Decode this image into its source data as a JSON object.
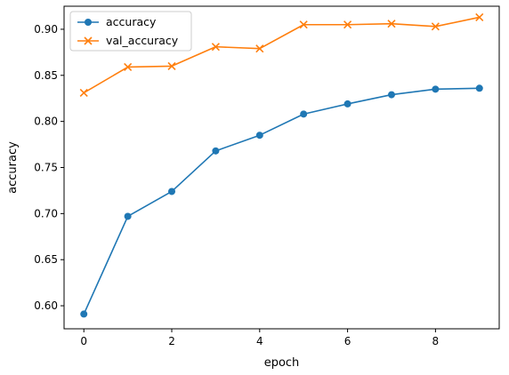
{
  "chart_data": {
    "type": "line",
    "title": "",
    "xlabel": "epoch",
    "ylabel": "accuracy",
    "x": [
      0,
      1,
      2,
      3,
      4,
      5,
      6,
      7,
      8,
      9
    ],
    "xlim": [
      -0.45,
      9.45
    ],
    "ylim": [
      0.575,
      0.925
    ],
    "xticks": [
      0,
      2,
      4,
      6,
      8
    ],
    "xtick_labels": [
      "0",
      "2",
      "4",
      "6",
      "8"
    ],
    "yticks": [
      0.6,
      0.65,
      0.7,
      0.75,
      0.8,
      0.85,
      0.9
    ],
    "ytick_labels": [
      "0.60",
      "0.65",
      "0.70",
      "0.75",
      "0.80",
      "0.85",
      "0.90"
    ],
    "grid": false,
    "legend_position": "top-left",
    "series": [
      {
        "name": "accuracy",
        "values": [
          0.591,
          0.697,
          0.724,
          0.768,
          0.785,
          0.808,
          0.819,
          0.829,
          0.835,
          0.836
        ],
        "color": "#1f77b4",
        "marker": "circle"
      },
      {
        "name": "val_accuracy",
        "values": [
          0.831,
          0.859,
          0.86,
          0.881,
          0.879,
          0.905,
          0.905,
          0.906,
          0.903,
          0.913
        ],
        "color": "#ff7f0e",
        "marker": "x"
      }
    ]
  }
}
